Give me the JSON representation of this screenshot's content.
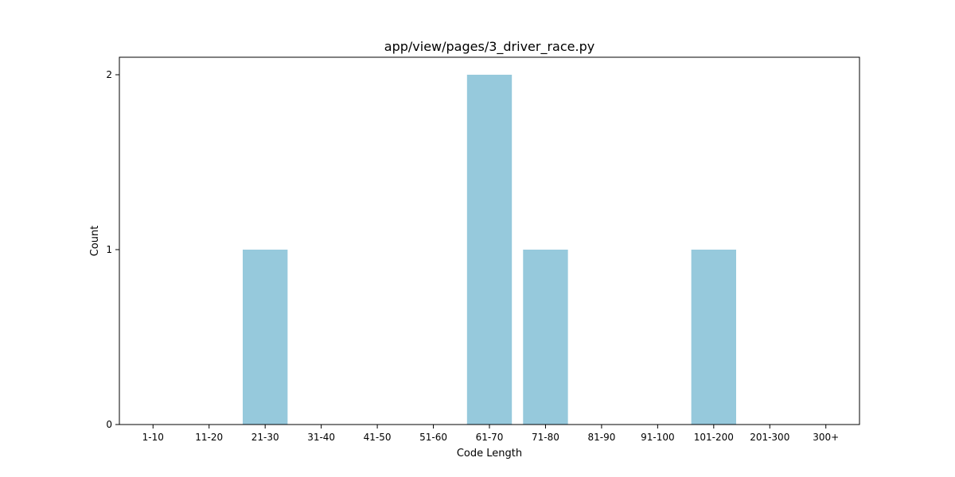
{
  "chart_data": {
    "type": "bar",
    "title": "app/view/pages/3_driver_race.py",
    "xlabel": "Code Length",
    "ylabel": "Count",
    "categories": [
      "1-10",
      "11-20",
      "21-30",
      "31-40",
      "41-50",
      "51-60",
      "61-70",
      "71-80",
      "81-90",
      "91-100",
      "101-200",
      "201-300",
      "300+"
    ],
    "values": [
      0,
      0,
      1,
      0,
      0,
      0,
      2,
      1,
      0,
      0,
      1,
      0,
      0
    ],
    "ylim": [
      0,
      2.1
    ],
    "yticks": [
      0,
      1,
      2
    ],
    "ytick_labels": [
      "0",
      "1",
      "2"
    ],
    "grid": false,
    "bar_color": "#96c9dc"
  }
}
